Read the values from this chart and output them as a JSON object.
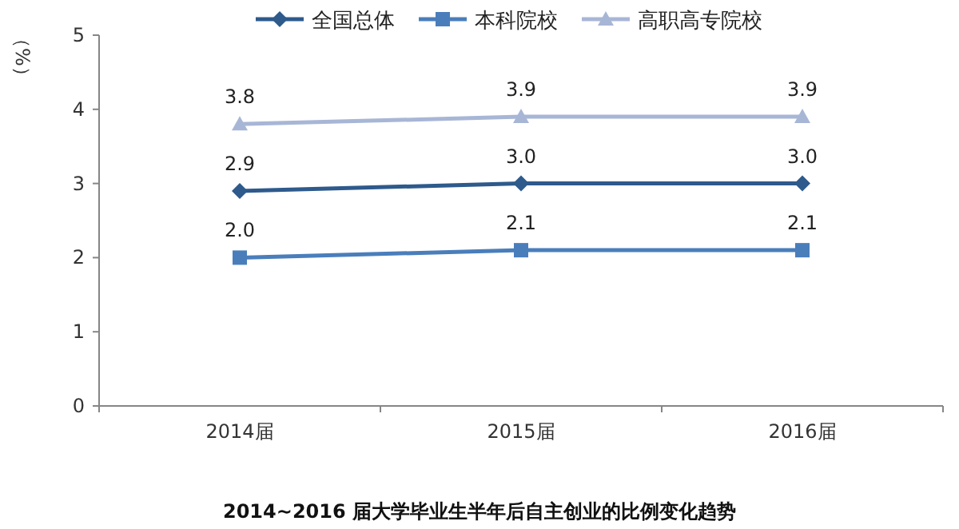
{
  "chart_data": {
    "type": "line",
    "title": "2014~2016 届大学毕业生半年后自主创业的比例变化趋势",
    "ylabel": "（%）",
    "categories": [
      "2014届",
      "2015届",
      "2016届"
    ],
    "series": [
      {
        "name": "全国总体",
        "color": "#2e5a8c",
        "marker": "diamond",
        "values": [
          2.9,
          3.0,
          3.0
        ],
        "value_labels": [
          "2.9",
          "3.0",
          "3.0"
        ]
      },
      {
        "name": "本科院校",
        "color": "#4a7ebb",
        "marker": "square",
        "values": [
          2.0,
          2.1,
          2.1
        ],
        "value_labels": [
          "2.0",
          "2.1",
          "2.1"
        ]
      },
      {
        "name": "高职高专院校",
        "color": "#a8b6d6",
        "marker": "triangle",
        "values": [
          3.8,
          3.9,
          3.9
        ],
        "value_labels": [
          "3.8",
          "3.9",
          "3.9"
        ]
      }
    ],
    "ylim": [
      0,
      5
    ],
    "yticks": [
      0,
      1,
      2,
      3,
      4,
      5
    ],
    "grid": false,
    "legend": "top",
    "line_style": "solid"
  }
}
